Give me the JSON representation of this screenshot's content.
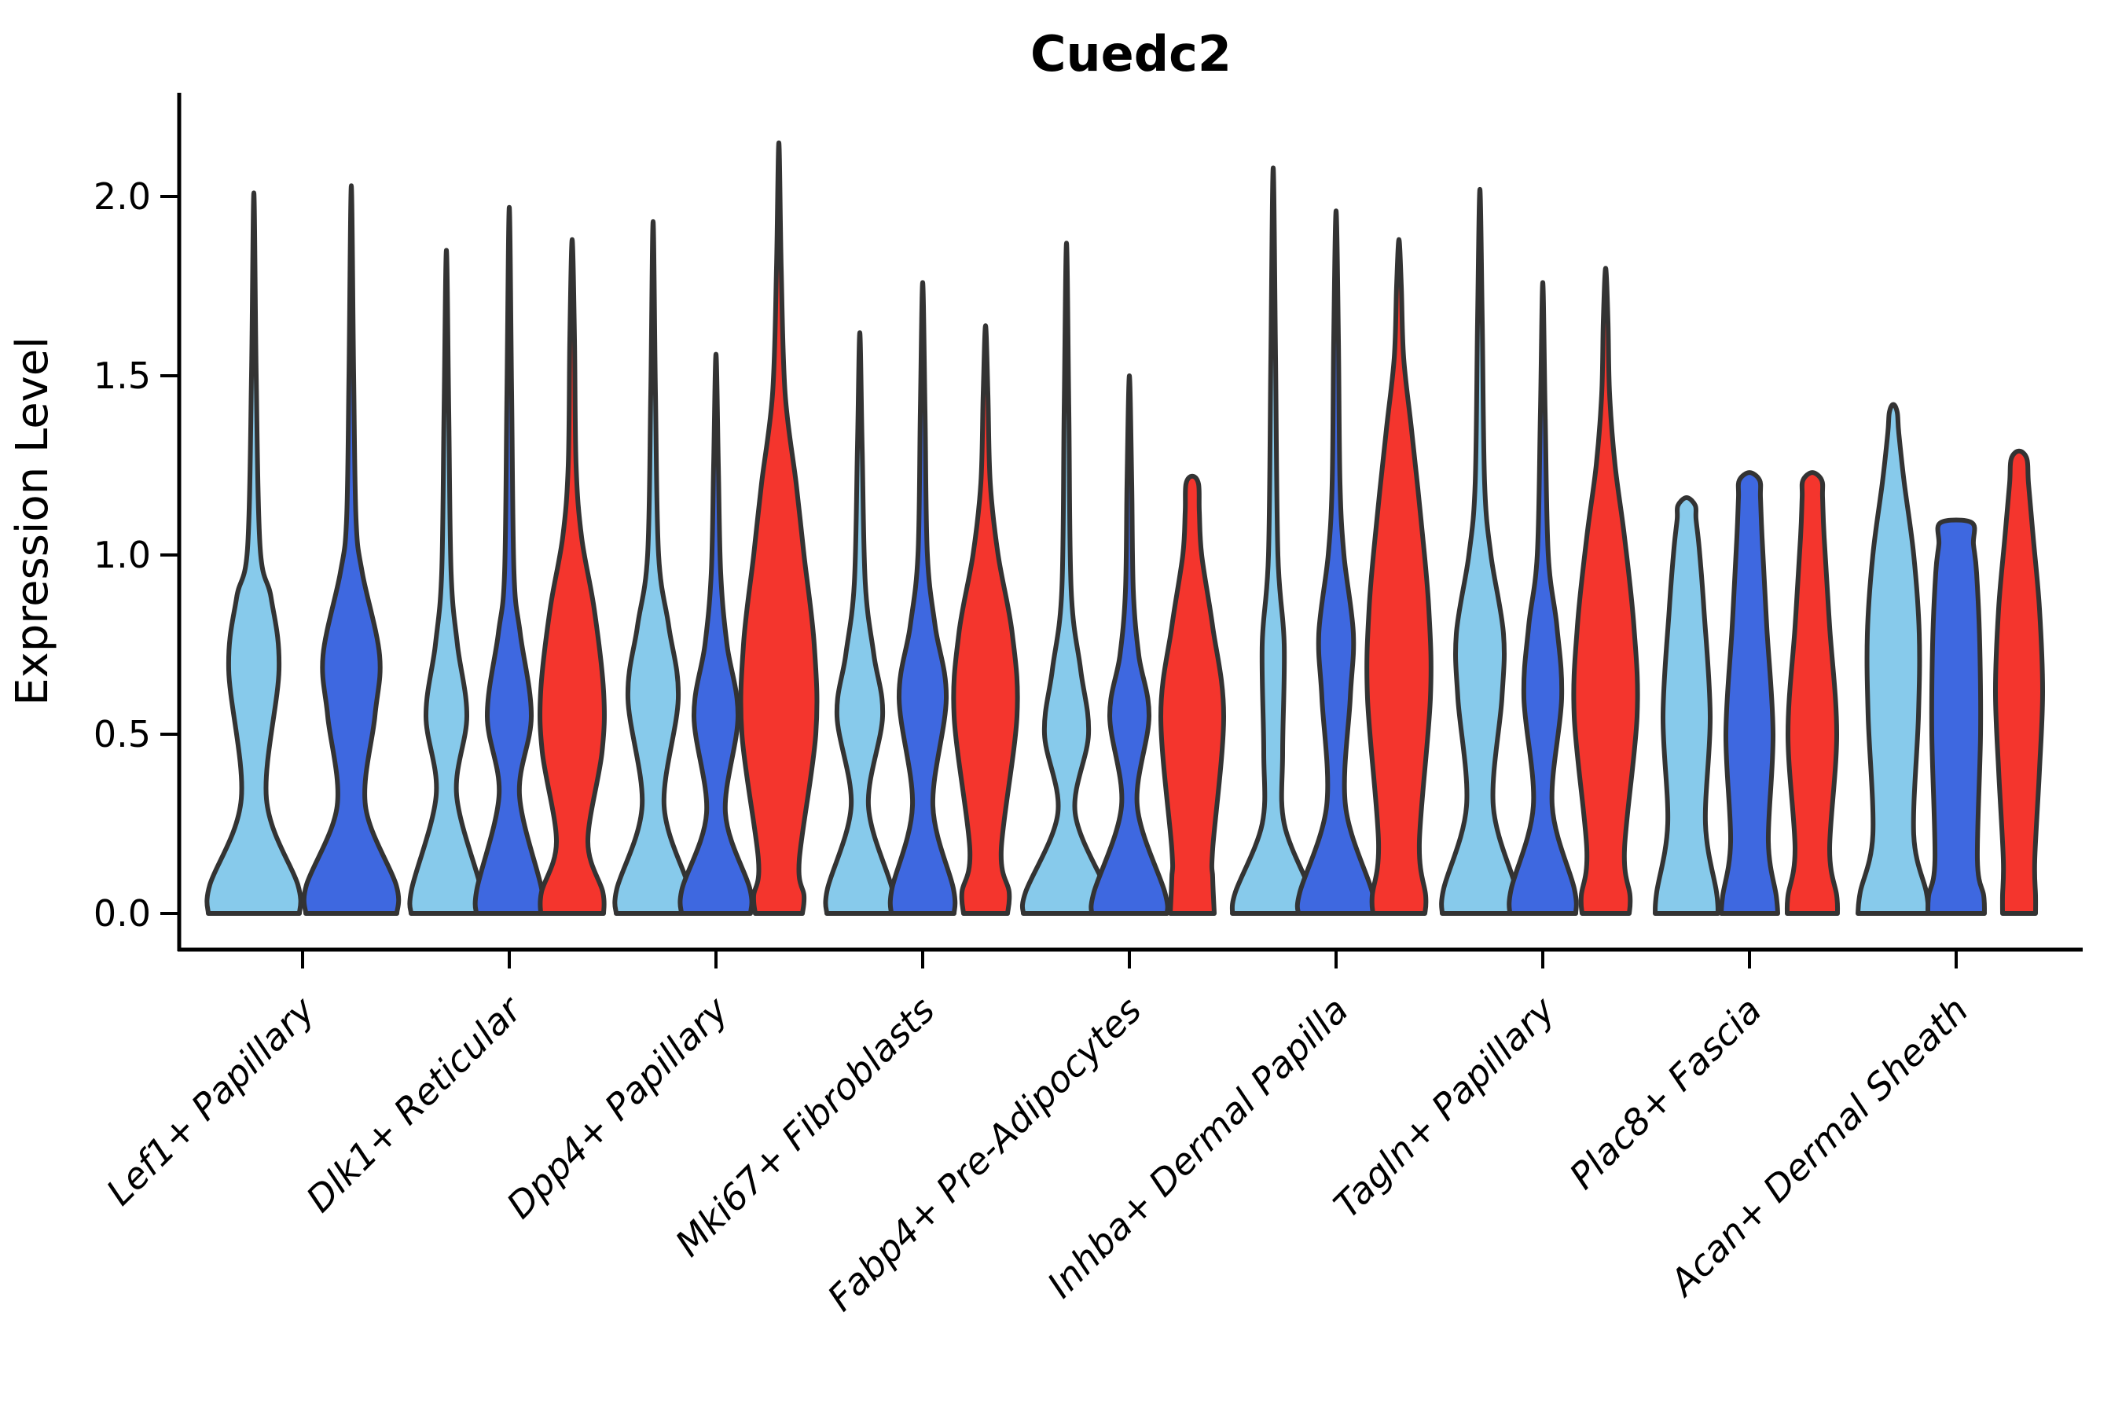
{
  "title": "Cuedc2",
  "ylabel": "Expression Level",
  "chart_data": {
    "type": "violin",
    "title": "Cuedc2",
    "xlabel": "",
    "ylabel": "Expression Level",
    "ylim": [
      -0.1,
      2.28
    ],
    "yticks": [
      {
        "label": "2.0",
        "value": 2.0
      },
      {
        "label": "1.5",
        "value": 1.5
      },
      {
        "label": "1.0",
        "value": 1.0
      },
      {
        "label": "0.5",
        "value": 0.5
      },
      {
        "label": "0.0",
        "value": 0.0
      }
    ],
    "categories": [
      "Lef1+ Papillary",
      "Dlk1+ Reticular",
      "Dpp4+ Papillary",
      "Mki67+ Fibroblasts",
      "Fabp4+ Pre-Adipocytes",
      "Inhba+ Dermal Papilla",
      "Tagln+ Papillary",
      "Plac8+ Fascia",
      "Acan+ Dermal Sheath"
    ],
    "legend": "none",
    "grid": false,
    "colors": {
      "light_blue": "#87CAEB",
      "dark_blue": "#3E68E0",
      "red": "#F4352D",
      "edge": "#333333",
      "axis": "#000000"
    },
    "violins": [
      {
        "category_index": 0,
        "color": "light_blue",
        "offset": -62,
        "peak": 2.01,
        "cap": "point",
        "tip_w": 0,
        "profile": [
          [
            0,
            58
          ],
          [
            0.08,
            56
          ],
          [
            0.32,
            16
          ],
          [
            0.68,
            32
          ],
          [
            0.88,
            22
          ],
          [
            1.02,
            8
          ],
          [
            1.5,
            3
          ]
        ]
      },
      {
        "category_index": 0,
        "color": "dark_blue",
        "offset": 62,
        "peak": 2.03,
        "cap": "point",
        "tip_w": 0,
        "profile": [
          [
            0,
            58
          ],
          [
            0.08,
            57
          ],
          [
            0.3,
            18
          ],
          [
            0.55,
            30
          ],
          [
            0.72,
            36
          ],
          [
            0.95,
            14
          ],
          [
            1.1,
            6
          ],
          [
            1.5,
            3
          ]
        ]
      },
      {
        "category_index": 1,
        "color": "light_blue",
        "offset": -80,
        "peak": 1.85,
        "cap": "point",
        "tip_w": 0,
        "profile": [
          [
            0,
            45
          ],
          [
            0.07,
            44
          ],
          [
            0.33,
            13
          ],
          [
            0.55,
            26
          ],
          [
            0.75,
            14
          ],
          [
            0.95,
            6
          ],
          [
            1.4,
            3
          ]
        ]
      },
      {
        "category_index": 1,
        "color": "dark_blue",
        "offset": 0,
        "peak": 1.97,
        "cap": "point",
        "tip_w": 0,
        "profile": [
          [
            0,
            42
          ],
          [
            0.07,
            41
          ],
          [
            0.33,
            13
          ],
          [
            0.55,
            28
          ],
          [
            0.78,
            14
          ],
          [
            0.95,
            6
          ],
          [
            1.45,
            3
          ]
        ]
      },
      {
        "category_index": 1,
        "color": "red",
        "offset": 80,
        "peak": 1.88,
        "cap": "point",
        "tip_w": 0,
        "profile": [
          [
            0,
            40
          ],
          [
            0.06,
            39
          ],
          [
            0.2,
            20
          ],
          [
            0.45,
            38
          ],
          [
            0.62,
            40
          ],
          [
            0.85,
            28
          ],
          [
            1.05,
            12
          ],
          [
            1.25,
            5
          ],
          [
            1.6,
            3
          ]
        ]
      },
      {
        "category_index": 2,
        "color": "light_blue",
        "offset": -80,
        "peak": 1.93,
        "cap": "point",
        "tip_w": 0,
        "profile": [
          [
            0,
            47
          ],
          [
            0.07,
            46
          ],
          [
            0.3,
            14
          ],
          [
            0.6,
            32
          ],
          [
            0.8,
            20
          ],
          [
            1.0,
            7
          ],
          [
            1.45,
            3
          ]
        ]
      },
      {
        "category_index": 2,
        "color": "dark_blue",
        "offset": 0,
        "peak": 1.56,
        "cap": "point",
        "tip_w": 0,
        "profile": [
          [
            0,
            44
          ],
          [
            0.07,
            43
          ],
          [
            0.28,
            12
          ],
          [
            0.55,
            28
          ],
          [
            0.75,
            14
          ],
          [
            0.95,
            6
          ],
          [
            1.25,
            3
          ]
        ]
      },
      {
        "category_index": 2,
        "color": "red",
        "offset": 80,
        "peak": 2.15,
        "cap": "point",
        "tip_w": 0,
        "profile": [
          [
            0,
            30
          ],
          [
            0.05,
            32
          ],
          [
            0.15,
            26
          ],
          [
            0.5,
            47
          ],
          [
            0.75,
            45
          ],
          [
            1.0,
            32
          ],
          [
            1.2,
            22
          ],
          [
            1.45,
            8
          ],
          [
            1.8,
            3
          ]
        ]
      },
      {
        "category_index": 3,
        "color": "light_blue",
        "offset": -80,
        "peak": 1.62,
        "cap": "point",
        "tip_w": 0,
        "profile": [
          [
            0,
            42
          ],
          [
            0.07,
            41
          ],
          [
            0.3,
            11
          ],
          [
            0.55,
            29
          ],
          [
            0.72,
            18
          ],
          [
            0.92,
            7
          ],
          [
            1.3,
            3
          ]
        ]
      },
      {
        "category_index": 3,
        "color": "dark_blue",
        "offset": 0,
        "peak": 1.76,
        "cap": "point",
        "tip_w": 0,
        "profile": [
          [
            0,
            40
          ],
          [
            0.07,
            39
          ],
          [
            0.3,
            13
          ],
          [
            0.6,
            30
          ],
          [
            0.8,
            16
          ],
          [
            1.0,
            6
          ],
          [
            1.4,
            3
          ]
        ]
      },
      {
        "category_index": 3,
        "color": "red",
        "offset": 80,
        "peak": 1.64,
        "cap": "point",
        "tip_w": 0,
        "profile": [
          [
            0,
            28
          ],
          [
            0.06,
            30
          ],
          [
            0.18,
            20
          ],
          [
            0.55,
            40
          ],
          [
            0.78,
            34
          ],
          [
            1.0,
            16
          ],
          [
            1.2,
            6
          ],
          [
            1.45,
            3
          ]
        ]
      },
      {
        "category_index": 4,
        "color": "light_blue",
        "offset": -80,
        "peak": 1.87,
        "cap": "point",
        "tip_w": 0,
        "profile": [
          [
            0,
            55
          ],
          [
            0.06,
            52
          ],
          [
            0.28,
            11
          ],
          [
            0.5,
            28
          ],
          [
            0.68,
            18
          ],
          [
            0.9,
            6
          ],
          [
            1.4,
            3
          ]
        ]
      },
      {
        "category_index": 4,
        "color": "dark_blue",
        "offset": 0,
        "peak": 1.5,
        "cap": "point",
        "tip_w": 0,
        "profile": [
          [
            0,
            48
          ],
          [
            0.06,
            45
          ],
          [
            0.3,
            10
          ],
          [
            0.55,
            25
          ],
          [
            0.72,
            12
          ],
          [
            0.9,
            5
          ],
          [
            1.2,
            3
          ]
        ]
      },
      {
        "category_index": 4,
        "color": "red",
        "offset": 80,
        "peak": 1.22,
        "cap": "round",
        "tip_w": 8,
        "profile": [
          [
            0,
            28
          ],
          [
            0.1,
            26
          ],
          [
            0.18,
            26
          ],
          [
            0.55,
            40
          ],
          [
            0.8,
            26
          ],
          [
            1.0,
            12
          ],
          [
            1.12,
            9
          ]
        ]
      },
      {
        "category_index": 5,
        "color": "light_blue",
        "offset": -80,
        "peak": 2.08,
        "cap": "point",
        "tip_w": 0,
        "profile": [
          [
            0,
            52
          ],
          [
            0.06,
            48
          ],
          [
            0.25,
            14
          ],
          [
            0.45,
            12
          ],
          [
            0.75,
            14
          ],
          [
            1.0,
            6
          ],
          [
            1.55,
            3
          ]
        ]
      },
      {
        "category_index": 5,
        "color": "dark_blue",
        "offset": 0,
        "peak": 1.96,
        "cap": "point",
        "tip_w": 0,
        "profile": [
          [
            0,
            48
          ],
          [
            0.06,
            46
          ],
          [
            0.3,
            12
          ],
          [
            0.6,
            18
          ],
          [
            0.78,
            22
          ],
          [
            1.0,
            10
          ],
          [
            1.2,
            5
          ],
          [
            1.6,
            3
          ]
        ]
      },
      {
        "category_index": 5,
        "color": "red",
        "offset": 80,
        "peak": 1.88,
        "cap": "point",
        "tip_w": 0,
        "profile": [
          [
            0,
            33
          ],
          [
            0.05,
            34
          ],
          [
            0.2,
            26
          ],
          [
            0.6,
            40
          ],
          [
            0.85,
            38
          ],
          [
            1.1,
            28
          ],
          [
            1.35,
            16
          ],
          [
            1.55,
            6
          ],
          [
            1.75,
            3
          ]
        ]
      },
      {
        "category_index": 6,
        "color": "light_blue",
        "offset": -80,
        "peak": 2.02,
        "cap": "point",
        "tip_w": 0,
        "profile": [
          [
            0,
            48
          ],
          [
            0.07,
            46
          ],
          [
            0.3,
            17
          ],
          [
            0.6,
            28
          ],
          [
            0.78,
            30
          ],
          [
            1.0,
            14
          ],
          [
            1.2,
            6
          ],
          [
            1.65,
            3
          ]
        ]
      },
      {
        "category_index": 6,
        "color": "dark_blue",
        "offset": 0,
        "peak": 1.76,
        "cap": "point",
        "tip_w": 0,
        "profile": [
          [
            0,
            42
          ],
          [
            0.07,
            40
          ],
          [
            0.3,
            12
          ],
          [
            0.6,
            24
          ],
          [
            0.8,
            18
          ],
          [
            1.0,
            7
          ],
          [
            1.4,
            3
          ]
        ]
      },
      {
        "category_index": 6,
        "color": "red",
        "offset": 80,
        "peak": 1.8,
        "cap": "point",
        "tip_w": 0,
        "profile": [
          [
            0,
            30
          ],
          [
            0.05,
            31
          ],
          [
            0.18,
            24
          ],
          [
            0.55,
            40
          ],
          [
            0.8,
            36
          ],
          [
            1.05,
            24
          ],
          [
            1.25,
            12
          ],
          [
            1.45,
            5
          ],
          [
            1.65,
            3
          ]
        ]
      },
      {
        "category_index": 7,
        "color": "light_blue",
        "offset": -80,
        "peak": 1.16,
        "cap": "round",
        "tip_w": 11,
        "profile": [
          [
            0,
            40
          ],
          [
            0.06,
            38
          ],
          [
            0.25,
            24
          ],
          [
            0.55,
            30
          ],
          [
            0.85,
            22
          ],
          [
            1.02,
            16
          ],
          [
            1.1,
            12
          ]
        ]
      },
      {
        "category_index": 7,
        "color": "dark_blue",
        "offset": 0,
        "peak": 1.23,
        "cap": "round",
        "tip_w": 13,
        "profile": [
          [
            0,
            36
          ],
          [
            0.05,
            34
          ],
          [
            0.2,
            24
          ],
          [
            0.5,
            30
          ],
          [
            0.8,
            22
          ],
          [
            1.05,
            16
          ],
          [
            1.16,
            14
          ]
        ]
      },
      {
        "category_index": 7,
        "color": "red",
        "offset": 80,
        "peak": 1.23,
        "cap": "round",
        "tip_w": 12,
        "profile": [
          [
            0,
            32
          ],
          [
            0.05,
            31
          ],
          [
            0.18,
            22
          ],
          [
            0.5,
            31
          ],
          [
            0.8,
            22
          ],
          [
            1.05,
            15
          ],
          [
            1.16,
            13
          ]
        ]
      },
      {
        "category_index": 8,
        "color": "light_blue",
        "offset": -80,
        "peak": 1.42,
        "cap": "round",
        "tip_w": 5,
        "profile": [
          [
            0,
            45
          ],
          [
            0.06,
            42
          ],
          [
            0.22,
            26
          ],
          [
            0.55,
            32
          ],
          [
            0.78,
            33
          ],
          [
            1.0,
            26
          ],
          [
            1.2,
            14
          ],
          [
            1.34,
            7
          ]
        ]
      },
      {
        "category_index": 8,
        "color": "dark_blue",
        "offset": 0,
        "peak": 1.09,
        "cap": "flat",
        "tip_w": 20,
        "profile": [
          [
            0,
            36
          ],
          [
            0.05,
            35
          ],
          [
            0.15,
            27
          ],
          [
            0.5,
            31
          ],
          [
            0.75,
            30
          ],
          [
            0.95,
            26
          ],
          [
            1.03,
            22
          ]
        ]
      },
      {
        "category_index": 8,
        "color": "red",
        "offset": 80,
        "peak": 1.29,
        "cap": "round",
        "tip_w": 10,
        "profile": [
          [
            0,
            21
          ],
          [
            0.05,
            21
          ],
          [
            0.15,
            20
          ],
          [
            0.4,
            26
          ],
          [
            0.62,
            30
          ],
          [
            0.85,
            26
          ],
          [
            1.05,
            18
          ],
          [
            1.2,
            12
          ]
        ]
      }
    ]
  }
}
